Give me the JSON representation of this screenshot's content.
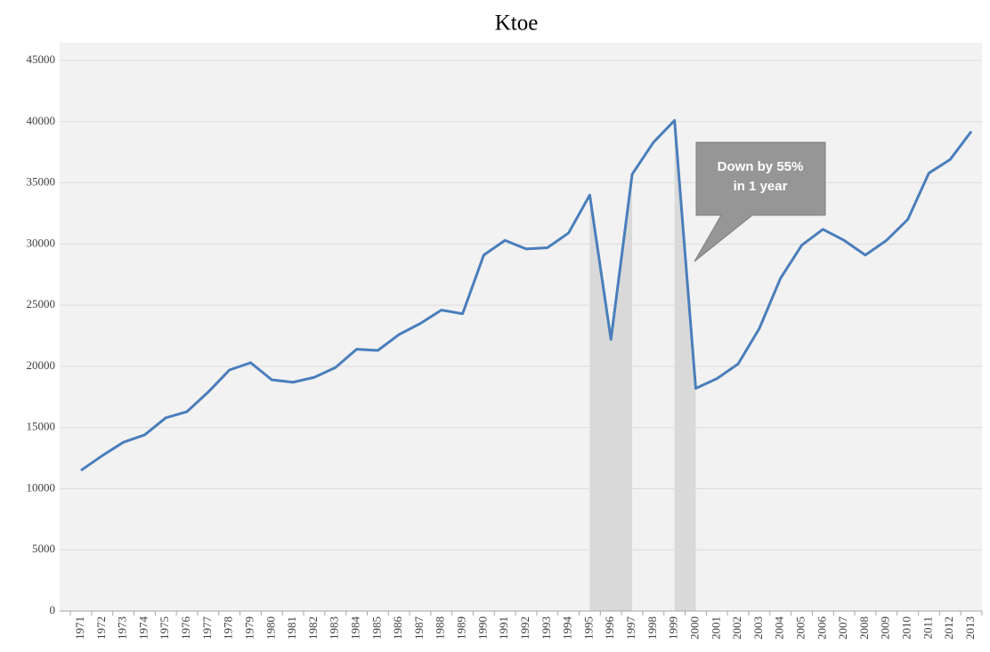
{
  "chart_data": {
    "type": "line",
    "title": "Ktoe",
    "categories": [
      "1971",
      "1972",
      "1973",
      "1974",
      "1975",
      "1976",
      "1977",
      "1978",
      "1979",
      "1980",
      "1981",
      "1982",
      "1983",
      "1984",
      "1985",
      "1986",
      "1987",
      "1988",
      "1989",
      "1990",
      "1991",
      "1992",
      "1993",
      "1994",
      "1995",
      "1996",
      "1997",
      "1998",
      "1999",
      "2000",
      "2001",
      "2002",
      "2003",
      "2004",
      "2005",
      "2006",
      "2007",
      "2008",
      "2009",
      "2010",
      "2011",
      "2012",
      "2013"
    ],
    "values": [
      11500,
      12700,
      13800,
      14400,
      15800,
      16300,
      17900,
      19700,
      20300,
      18900,
      18700,
      19100,
      19900,
      21400,
      21300,
      22600,
      23500,
      24600,
      24300,
      29100,
      30300,
      29600,
      29700,
      30900,
      34000,
      22200,
      35700,
      38300,
      40100,
      18200,
      19000,
      20200,
      23100,
      27200,
      29900,
      31200,
      30300,
      29100,
      30300,
      32000,
      35800,
      36900,
      39200
    ],
    "color": "#4a7ebb",
    "ylim": [
      0,
      45000
    ],
    "yticks": [
      0,
      5000,
      10000,
      15000,
      20000,
      25000,
      30000,
      35000,
      40000,
      45000
    ],
    "grid": true,
    "shaded_ranges": [
      [
        "1995",
        "1997"
      ],
      [
        "1999",
        "2000"
      ]
    ],
    "shade_color": "#d9d9d9",
    "annotation": [
      "Down by 55%",
      "in 1 year"
    ]
  }
}
